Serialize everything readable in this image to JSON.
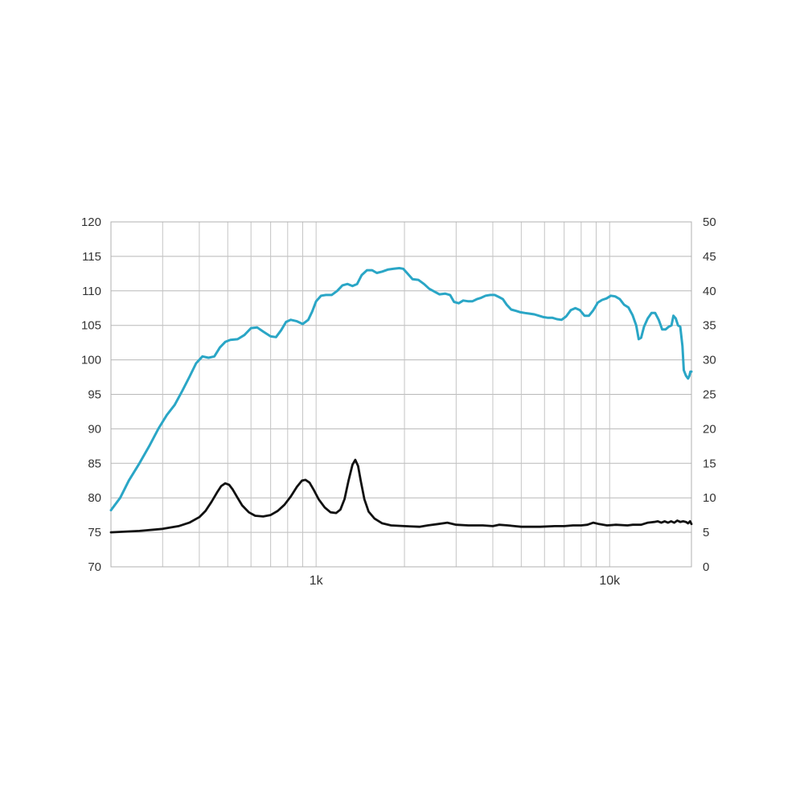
{
  "chart_data": {
    "type": "line",
    "x_scale": "log",
    "xlim": [
      200,
      19000
    ],
    "x_ticks": [
      {
        "value": 1000,
        "label": "1k"
      },
      {
        "value": 10000,
        "label": "10k"
      }
    ],
    "x_gridlines": [
      200,
      300,
      400,
      500,
      600,
      700,
      800,
      900,
      1000,
      2000,
      3000,
      4000,
      5000,
      6000,
      7000,
      8000,
      9000,
      10000
    ],
    "y_left": {
      "lim": [
        70,
        120
      ],
      "ticks": [
        "70",
        "75",
        "80",
        "85",
        "90",
        "95",
        "100",
        "105",
        "110",
        "115",
        "120"
      ]
    },
    "y_right": {
      "lim": [
        0,
        50
      ],
      "ticks": [
        "0",
        "5",
        "10",
        "15",
        "20",
        "25",
        "30",
        "35",
        "40",
        "45",
        "50"
      ]
    },
    "grid": true,
    "series": [
      {
        "axis": "left",
        "color": "#2aa6c6",
        "points": [
          [
            200,
            78.2
          ],
          [
            215,
            80.0
          ],
          [
            230,
            82.5
          ],
          [
            250,
            85.0
          ],
          [
            270,
            87.5
          ],
          [
            290,
            90.0
          ],
          [
            310,
            92.0
          ],
          [
            330,
            93.5
          ],
          [
            350,
            95.5
          ],
          [
            370,
            97.5
          ],
          [
            390,
            99.5
          ],
          [
            410,
            100.5
          ],
          [
            430,
            100.3
          ],
          [
            450,
            100.5
          ],
          [
            470,
            101.8
          ],
          [
            490,
            102.6
          ],
          [
            510,
            102.9
          ],
          [
            540,
            103.0
          ],
          [
            570,
            103.6
          ],
          [
            600,
            104.6
          ],
          [
            630,
            104.7
          ],
          [
            660,
            104.1
          ],
          [
            700,
            103.4
          ],
          [
            730,
            103.3
          ],
          [
            760,
            104.3
          ],
          [
            790,
            105.5
          ],
          [
            820,
            105.8
          ],
          [
            860,
            105.6
          ],
          [
            900,
            105.2
          ],
          [
            940,
            105.8
          ],
          [
            970,
            107.0
          ],
          [
            1000,
            108.5
          ],
          [
            1040,
            109.3
          ],
          [
            1080,
            109.4
          ],
          [
            1130,
            109.4
          ],
          [
            1180,
            110.0
          ],
          [
            1230,
            110.8
          ],
          [
            1280,
            111.0
          ],
          [
            1330,
            110.7
          ],
          [
            1380,
            111.0
          ],
          [
            1430,
            112.3
          ],
          [
            1490,
            113.0
          ],
          [
            1550,
            113.0
          ],
          [
            1610,
            112.6
          ],
          [
            1680,
            112.8
          ],
          [
            1760,
            113.1
          ],
          [
            1840,
            113.2
          ],
          [
            1920,
            113.3
          ],
          [
            1980,
            113.2
          ],
          [
            2050,
            112.5
          ],
          [
            2130,
            111.7
          ],
          [
            2230,
            111.6
          ],
          [
            2330,
            111.0
          ],
          [
            2430,
            110.3
          ],
          [
            2530,
            109.9
          ],
          [
            2630,
            109.5
          ],
          [
            2750,
            109.6
          ],
          [
            2860,
            109.4
          ],
          [
            2950,
            108.4
          ],
          [
            3060,
            108.2
          ],
          [
            3170,
            108.6
          ],
          [
            3290,
            108.5
          ],
          [
            3410,
            108.5
          ],
          [
            3530,
            108.8
          ],
          [
            3650,
            109.0
          ],
          [
            3780,
            109.3
          ],
          [
            3920,
            109.4
          ],
          [
            4060,
            109.4
          ],
          [
            4200,
            109.1
          ],
          [
            4330,
            108.8
          ],
          [
            4460,
            108.0
          ],
          [
            4620,
            107.3
          ],
          [
            4800,
            107.1
          ],
          [
            4970,
            106.9
          ],
          [
            5150,
            106.8
          ],
          [
            5340,
            106.7
          ],
          [
            5540,
            106.6
          ],
          [
            5740,
            106.4
          ],
          [
            5950,
            106.2
          ],
          [
            6170,
            106.1
          ],
          [
            6390,
            106.1
          ],
          [
            6620,
            105.9
          ],
          [
            6860,
            105.8
          ],
          [
            7110,
            106.3
          ],
          [
            7370,
            107.2
          ],
          [
            7640,
            107.5
          ],
          [
            7920,
            107.2
          ],
          [
            8210,
            106.4
          ],
          [
            8500,
            106.4
          ],
          [
            8800,
            107.2
          ],
          [
            9110,
            108.3
          ],
          [
            9430,
            108.7
          ],
          [
            9760,
            108.9
          ],
          [
            10100,
            109.3
          ],
          [
            10450,
            109.2
          ],
          [
            10830,
            108.8
          ],
          [
            11200,
            108.0
          ],
          [
            11590,
            107.6
          ],
          [
            11970,
            106.5
          ],
          [
            12320,
            105.0
          ],
          [
            12560,
            103.0
          ],
          [
            12800,
            103.2
          ],
          [
            13100,
            104.8
          ],
          [
            13480,
            106.0
          ],
          [
            13900,
            106.8
          ],
          [
            14300,
            106.8
          ],
          [
            14700,
            105.8
          ],
          [
            15100,
            104.4
          ],
          [
            15500,
            104.4
          ],
          [
            15900,
            104.8
          ],
          [
            16250,
            105.0
          ],
          [
            16500,
            106.4
          ],
          [
            16800,
            106.0
          ],
          [
            17100,
            105.0
          ],
          [
            17400,
            104.8
          ],
          [
            17700,
            102.0
          ],
          [
            17900,
            98.5
          ],
          [
            18200,
            97.7
          ],
          [
            18500,
            97.3
          ],
          [
            18700,
            97.7
          ],
          [
            18850,
            98.3
          ],
          [
            19000,
            98.3
          ]
        ]
      },
      {
        "axis": "right",
        "color": "#111111",
        "points": [
          [
            200,
            5.0
          ],
          [
            250,
            5.2
          ],
          [
            300,
            5.5
          ],
          [
            340,
            5.9
          ],
          [
            370,
            6.4
          ],
          [
            400,
            7.2
          ],
          [
            420,
            8.1
          ],
          [
            440,
            9.4
          ],
          [
            460,
            10.8
          ],
          [
            475,
            11.7
          ],
          [
            490,
            12.1
          ],
          [
            505,
            11.9
          ],
          [
            520,
            11.2
          ],
          [
            540,
            10.0
          ],
          [
            560,
            8.9
          ],
          [
            590,
            7.9
          ],
          [
            620,
            7.4
          ],
          [
            660,
            7.3
          ],
          [
            700,
            7.5
          ],
          [
            740,
            8.1
          ],
          [
            780,
            9.0
          ],
          [
            820,
            10.2
          ],
          [
            860,
            11.6
          ],
          [
            895,
            12.5
          ],
          [
            920,
            12.6
          ],
          [
            950,
            12.2
          ],
          [
            980,
            11.2
          ],
          [
            1020,
            9.8
          ],
          [
            1070,
            8.6
          ],
          [
            1120,
            7.9
          ],
          [
            1170,
            7.8
          ],
          [
            1210,
            8.3
          ],
          [
            1250,
            9.8
          ],
          [
            1290,
            12.5
          ],
          [
            1330,
            14.8
          ],
          [
            1360,
            15.5
          ],
          [
            1390,
            14.6
          ],
          [
            1420,
            12.4
          ],
          [
            1460,
            9.8
          ],
          [
            1510,
            8.0
          ],
          [
            1580,
            7.0
          ],
          [
            1680,
            6.3
          ],
          [
            1800,
            6.0
          ],
          [
            2000,
            5.9
          ],
          [
            2250,
            5.8
          ],
          [
            2400,
            6.0
          ],
          [
            2600,
            6.2
          ],
          [
            2800,
            6.4
          ],
          [
            3000,
            6.1
          ],
          [
            3300,
            6.0
          ],
          [
            3700,
            6.0
          ],
          [
            4000,
            5.9
          ],
          [
            4200,
            6.1
          ],
          [
            4500,
            6.0
          ],
          [
            5000,
            5.8
          ],
          [
            5800,
            5.8
          ],
          [
            6500,
            5.9
          ],
          [
            7000,
            5.9
          ],
          [
            7500,
            6.0
          ],
          [
            8000,
            6.0
          ],
          [
            8400,
            6.1
          ],
          [
            8800,
            6.4
          ],
          [
            9200,
            6.2
          ],
          [
            9800,
            6.0
          ],
          [
            10500,
            6.1
          ],
          [
            11500,
            6.0
          ],
          [
            12000,
            6.1
          ],
          [
            12800,
            6.1
          ],
          [
            13500,
            6.4
          ],
          [
            14200,
            6.5
          ],
          [
            14600,
            6.6
          ],
          [
            15000,
            6.4
          ],
          [
            15400,
            6.6
          ],
          [
            15800,
            6.4
          ],
          [
            16200,
            6.6
          ],
          [
            16600,
            6.4
          ],
          [
            17000,
            6.7
          ],
          [
            17400,
            6.5
          ],
          [
            17800,
            6.6
          ],
          [
            18200,
            6.5
          ],
          [
            18500,
            6.3
          ],
          [
            18800,
            6.6
          ],
          [
            19000,
            6.2
          ]
        ]
      }
    ]
  }
}
